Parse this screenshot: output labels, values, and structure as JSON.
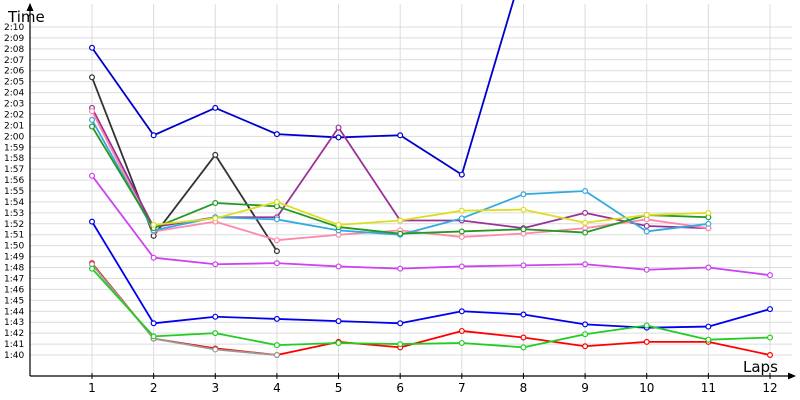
{
  "chart_data": {
    "type": "line",
    "ylabel": "Time",
    "xlabel": "Laps",
    "x": [
      1,
      2,
      3,
      4,
      5,
      6,
      7,
      8,
      9,
      10,
      11,
      12
    ],
    "x_tick_labels": [
      "1",
      "2",
      "3",
      "4",
      "5",
      "6",
      "7",
      "8",
      "9",
      "10",
      "11",
      "12"
    ],
    "y_tick_labels": [
      "1:40",
      "1:41",
      "1:42",
      "1:43",
      "1:44",
      "1:45",
      "1:46",
      "1:47",
      "1:48",
      "1:49",
      "1:50",
      "1:51",
      "1:52",
      "1:53",
      "1:54",
      "1:55",
      "1:56",
      "1:57",
      "1:58",
      "1:59",
      "2:00",
      "2:01",
      "2:02",
      "2:03",
      "2:04",
      "2:05",
      "2:06",
      "2:07",
      "2:08",
      "2:09",
      "2:10"
    ],
    "y_tick_values_seconds": [
      100,
      101,
      102,
      103,
      104,
      105,
      106,
      107,
      108,
      109,
      110,
      111,
      112,
      113,
      114,
      115,
      116,
      117,
      118,
      119,
      120,
      121,
      122,
      123,
      124,
      125,
      126,
      127,
      128,
      129,
      130
    ],
    "y_unit": "seconds",
    "ylim_seconds": [
      96.5,
      134
    ],
    "xlim": [
      0.05,
      12.4
    ],
    "grid": true,
    "legend": "none",
    "series": [
      {
        "color": "#0000cc",
        "values": [
          128.1,
          120.1,
          122.6,
          120.2,
          119.9,
          120.1,
          116.5,
          135.5,
          null,
          null,
          null,
          null
        ]
      },
      {
        "color": "#333333",
        "values": [
          125.4,
          110.9,
          118.3,
          109.5,
          null,
          null,
          null,
          null,
          null,
          null,
          null,
          null
        ]
      },
      {
        "color": "#993399",
        "values": [
          122.6,
          111.7,
          112.6,
          112.6,
          120.8,
          112.3,
          112.3,
          111.6,
          113.0,
          111.8,
          111.6,
          null
        ]
      },
      {
        "color": "#ff88aa",
        "values": [
          122.3,
          111.3,
          112.2,
          110.5,
          111.0,
          111.4,
          110.8,
          111.1,
          111.6,
          112.4,
          111.6,
          null
        ]
      },
      {
        "color": "#33aadd",
        "values": [
          121.5,
          111.4,
          112.6,
          112.4,
          111.4,
          111.0,
          112.5,
          114.7,
          115.0,
          111.3,
          112.0,
          null
        ]
      },
      {
        "color": "#229922",
        "values": [
          120.9,
          111.6,
          113.9,
          113.6,
          111.7,
          111.1,
          111.3,
          111.5,
          111.2,
          112.8,
          112.6,
          null
        ]
      },
      {
        "color": "#dddd22",
        "values": [
          null,
          111.9,
          112.5,
          114.0,
          111.9,
          112.3,
          113.2,
          113.3,
          112.1,
          112.8,
          113.0,
          null
        ]
      },
      {
        "color": "#cc44ee",
        "values": [
          116.4,
          108.9,
          108.3,
          108.4,
          108.1,
          107.9,
          108.1,
          108.2,
          108.3,
          107.8,
          108.0,
          107.3
        ]
      },
      {
        "color": "#0000ee",
        "values": [
          112.2,
          102.9,
          103.5,
          103.3,
          103.1,
          102.9,
          104.0,
          103.7,
          102.8,
          102.5,
          102.6,
          104.2
        ]
      },
      {
        "color": "#ff0000",
        "values": [
          108.4,
          101.5,
          100.6,
          100.0,
          101.2,
          100.7,
          102.2,
          101.6,
          100.8,
          101.2,
          101.2,
          100.0
        ]
      },
      {
        "color": "#999999",
        "values": [
          108.3,
          101.5,
          100.5,
          100.0,
          null,
          null,
          null,
          null,
          null,
          null,
          null,
          null
        ]
      },
      {
        "color": "#22cc22",
        "values": [
          107.9,
          101.7,
          102.0,
          100.9,
          101.1,
          101.0,
          101.1,
          100.7,
          101.9,
          102.7,
          101.4,
          101.6
        ]
      }
    ]
  }
}
